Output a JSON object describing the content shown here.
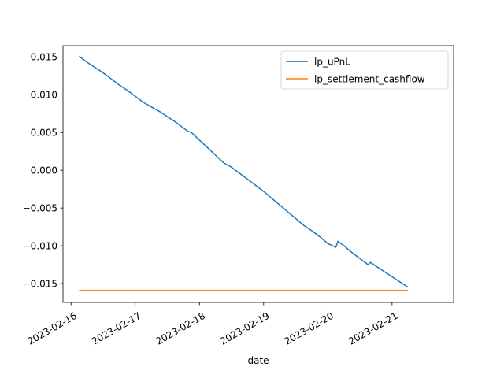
{
  "chart_data": {
    "type": "line",
    "xlabel": "date",
    "ylabel": "",
    "x_axis_type": "date",
    "xlim": [
      "2023-02-15T21:00",
      "2023-02-21T23:00"
    ],
    "ylim": [
      -0.0175,
      0.0165
    ],
    "x_ticks": [
      "2023-02-16",
      "2023-02-17",
      "2023-02-18",
      "2023-02-19",
      "2023-02-20",
      "2023-02-21"
    ],
    "y_ticks": [
      0.015,
      0.01,
      0.005,
      0.0,
      -0.005,
      -0.01,
      -0.015
    ],
    "y_tick_labels": [
      "0.015",
      "0.010",
      "0.005",
      "0.000",
      "−0.005",
      "−0.010",
      "−0.015"
    ],
    "grid": false,
    "legend_position": "top-right",
    "series": [
      {
        "name": "lp_uPnL",
        "color": "#1f77b4",
        "points": [
          {
            "x": "2023-02-16T03:00",
            "y": 0.0151
          },
          {
            "x": "2023-02-16T06:00",
            "y": 0.0143
          },
          {
            "x": "2023-02-16T09:00",
            "y": 0.0136
          },
          {
            "x": "2023-02-16T12:00",
            "y": 0.0129
          },
          {
            "x": "2023-02-16T15:00",
            "y": 0.0121
          },
          {
            "x": "2023-02-16T18:00",
            "y": 0.0113
          },
          {
            "x": "2023-02-16T21:00",
            "y": 0.0106
          },
          {
            "x": "2023-02-17T00:00",
            "y": 0.0098
          },
          {
            "x": "2023-02-17T03:00",
            "y": 0.009
          },
          {
            "x": "2023-02-17T06:00",
            "y": 0.0084
          },
          {
            "x": "2023-02-17T09:00",
            "y": 0.0078
          },
          {
            "x": "2023-02-17T12:00",
            "y": 0.0071
          },
          {
            "x": "2023-02-17T15:00",
            "y": 0.0064
          },
          {
            "x": "2023-02-17T18:00",
            "y": 0.0056
          },
          {
            "x": "2023-02-17T19:30",
            "y": 0.0052
          },
          {
            "x": "2023-02-17T21:00",
            "y": 0.005
          },
          {
            "x": "2023-02-18T00:00",
            "y": 0.004
          },
          {
            "x": "2023-02-18T03:00",
            "y": 0.003
          },
          {
            "x": "2023-02-18T06:00",
            "y": 0.002
          },
          {
            "x": "2023-02-18T09:00",
            "y": 0.001
          },
          {
            "x": "2023-02-18T12:00",
            "y": 0.0004
          },
          {
            "x": "2023-02-18T15:00",
            "y": -0.0004
          },
          {
            "x": "2023-02-18T18:00",
            "y": -0.0012
          },
          {
            "x": "2023-02-18T21:00",
            "y": -0.002
          },
          {
            "x": "2023-02-19T00:00",
            "y": -0.0028
          },
          {
            "x": "2023-02-19T03:00",
            "y": -0.0037
          },
          {
            "x": "2023-02-19T06:00",
            "y": -0.0046
          },
          {
            "x": "2023-02-19T09:00",
            "y": -0.0055
          },
          {
            "x": "2023-02-19T12:00",
            "y": -0.0064
          },
          {
            "x": "2023-02-19T15:00",
            "y": -0.0073
          },
          {
            "x": "2023-02-19T18:00",
            "y": -0.008
          },
          {
            "x": "2023-02-19T21:00",
            "y": -0.0088
          },
          {
            "x": "2023-02-20T00:00",
            "y": -0.0097
          },
          {
            "x": "2023-02-20T03:00",
            "y": -0.0102
          },
          {
            "x": "2023-02-20T03:45",
            "y": -0.0094
          },
          {
            "x": "2023-02-20T06:00",
            "y": -0.01
          },
          {
            "x": "2023-02-20T09:00",
            "y": -0.0109
          },
          {
            "x": "2023-02-20T12:00",
            "y": -0.0117
          },
          {
            "x": "2023-02-20T15:00",
            "y": -0.0125
          },
          {
            "x": "2023-02-20T16:00",
            "y": -0.0122
          },
          {
            "x": "2023-02-20T18:00",
            "y": -0.0127
          },
          {
            "x": "2023-02-20T21:00",
            "y": -0.0134
          },
          {
            "x": "2023-02-21T00:00",
            "y": -0.0141
          },
          {
            "x": "2023-02-21T03:00",
            "y": -0.0148
          },
          {
            "x": "2023-02-21T06:00",
            "y": -0.0155
          }
        ]
      },
      {
        "name": "lp_settlement_cashflow",
        "color": "#ff7f0e",
        "points": [
          {
            "x": "2023-02-16T03:00",
            "y": -0.0159
          },
          {
            "x": "2023-02-21T06:00",
            "y": -0.0159
          }
        ]
      }
    ]
  }
}
